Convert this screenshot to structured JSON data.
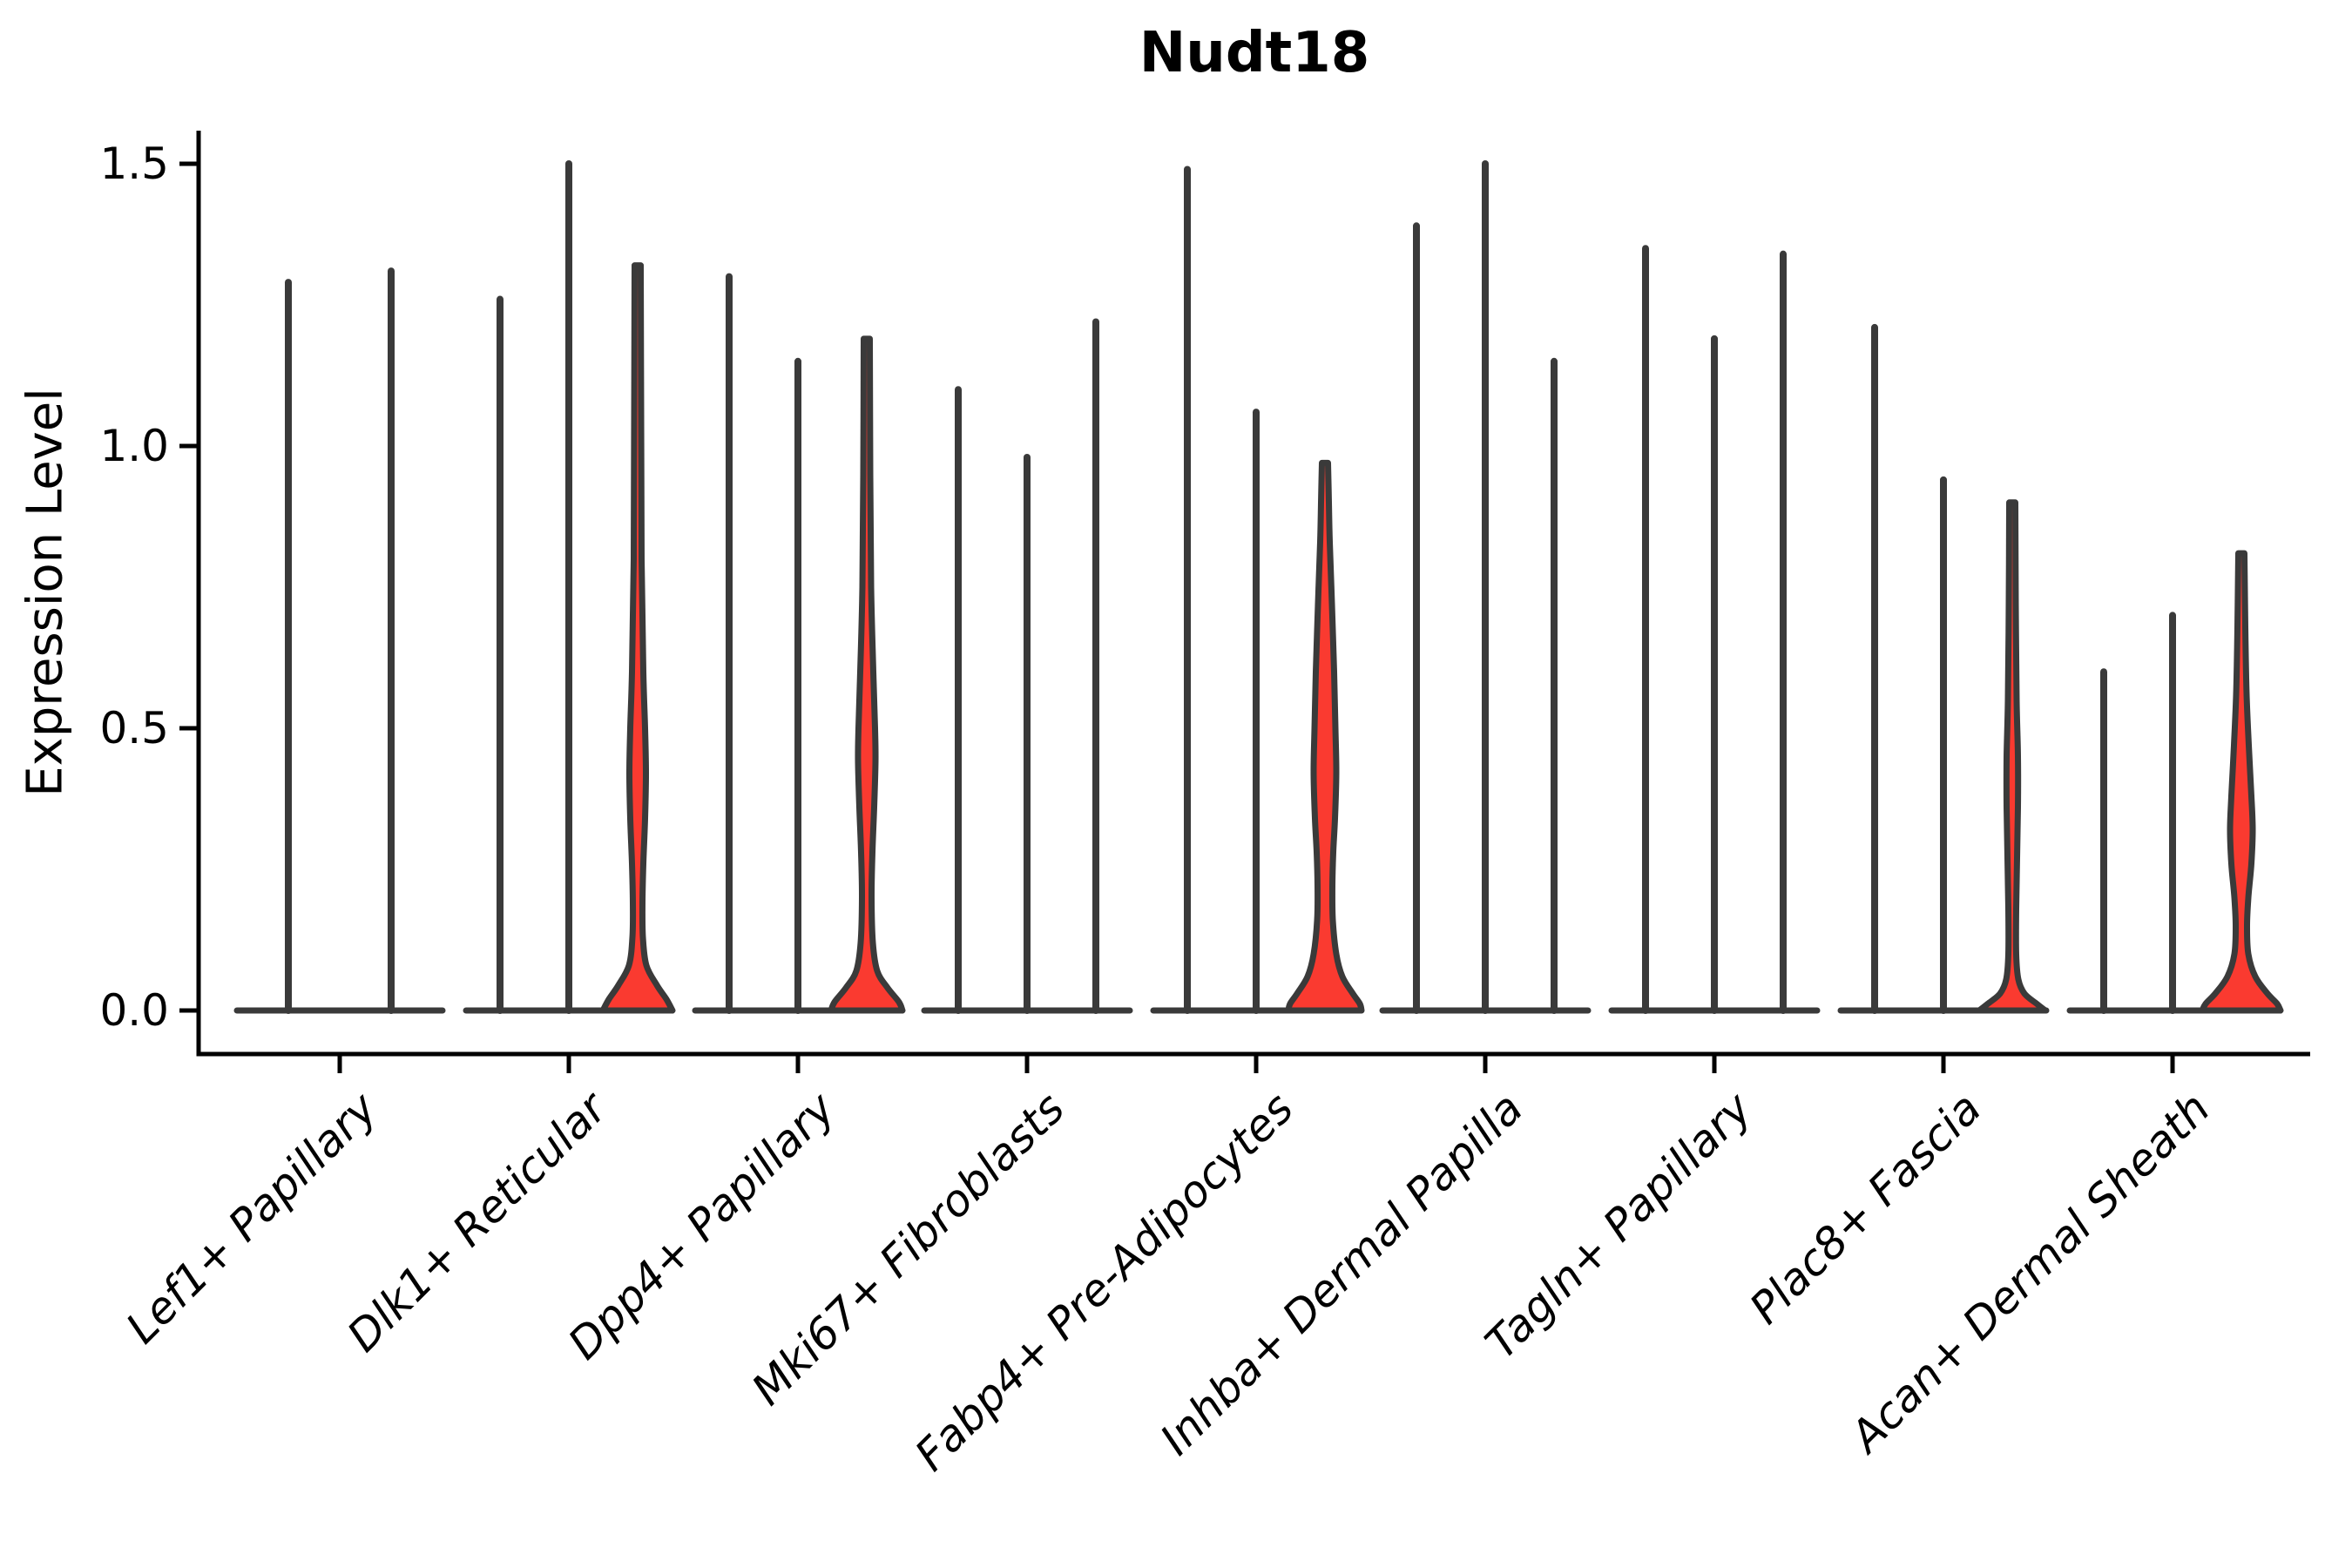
{
  "chart_data": {
    "type": "violin",
    "title": "Nudt18",
    "ylabel": "Expression Level",
    "xlabel": "",
    "grid": false,
    "legend": "none",
    "ylim": [
      -0.08,
      1.56
    ],
    "ytick_labels": [
      "0.0",
      "0.5",
      "1.0",
      "1.5"
    ],
    "ytick_values": [
      0.0,
      0.5,
      1.0,
      1.5
    ],
    "colors": {
      "violin_fill": "#fa3a30",
      "violin_edge": "#3a3a3a",
      "axis": "#000000",
      "background": "#ffffff"
    },
    "description": "Violin plot of Nudt18 expression; most violins collapse to thin spikes at 0 with tails up to the max expression value; red-filled violins show non-zero density bulges.",
    "categories": [
      {
        "label": "Lef1+ Papillary",
        "slots": 2,
        "violins": [
          {
            "slot": 0,
            "max": 1.29,
            "kind": "spike"
          },
          {
            "slot": 1,
            "max": 1.31,
            "kind": "spike"
          }
        ]
      },
      {
        "label": "Dlk1+ Reticular",
        "slots": 3,
        "violins": [
          {
            "slot": 0,
            "max": 1.26,
            "kind": "spike"
          },
          {
            "slot": 1,
            "max": 1.5,
            "kind": "spike"
          },
          {
            "slot": 2,
            "max": 1.32,
            "kind": "shaped",
            "profile": [
              [
                1.32,
                3.5
              ],
              [
                1.05,
                4
              ],
              [
                0.8,
                4.5
              ],
              [
                0.6,
                6.5
              ],
              [
                0.5,
                8.5
              ],
              [
                0.42,
                9.5
              ],
              [
                0.34,
                8.5
              ],
              [
                0.26,
                6.5
              ],
              [
                0.19,
                5.5
              ],
              [
                0.13,
                6
              ],
              [
                0.08,
                10
              ],
              [
                0.045,
                22
              ],
              [
                0.02,
                33
              ],
              [
                0,
                40
              ]
            ]
          }
        ]
      },
      {
        "label": "Dpp4+ Papillary",
        "slots": 3,
        "violins": [
          {
            "slot": 0,
            "max": 1.3,
            "kind": "spike"
          },
          {
            "slot": 1,
            "max": 1.15,
            "kind": "spike"
          },
          {
            "slot": 2,
            "max": 1.19,
            "kind": "shaped",
            "profile": [
              [
                1.19,
                3.5
              ],
              [
                0.95,
                4
              ],
              [
                0.75,
                5
              ],
              [
                0.6,
                7.5
              ],
              [
                0.5,
                9.5
              ],
              [
                0.44,
                10
              ],
              [
                0.36,
                8.5
              ],
              [
                0.28,
                6.5
              ],
              [
                0.2,
                5.5
              ],
              [
                0.12,
                7
              ],
              [
                0.07,
                12
              ],
              [
                0.04,
                24
              ],
              [
                0.015,
                37
              ],
              [
                0,
                41
              ]
            ]
          }
        ]
      },
      {
        "label": "Mki67+ Fibroblasts",
        "slots": 3,
        "violins": [
          {
            "slot": 0,
            "max": 1.1,
            "kind": "spike"
          },
          {
            "slot": 1,
            "max": 0.98,
            "kind": "spike"
          },
          {
            "slot": 2,
            "max": 1.22,
            "kind": "spike"
          }
        ]
      },
      {
        "label": "Fabp4+ Pre-Adipocytes",
        "slots": 3,
        "violins": [
          {
            "slot": 0,
            "max": 1.49,
            "kind": "spike"
          },
          {
            "slot": 1,
            "max": 1.06,
            "kind": "spike"
          },
          {
            "slot": 2,
            "max": 0.97,
            "kind": "shaped",
            "profile": [
              [
                0.97,
                3.5
              ],
              [
                0.9,
                4.5
              ],
              [
                0.83,
                5.5
              ],
              [
                0.72,
                8
              ],
              [
                0.6,
                10.5
              ],
              [
                0.5,
                12
              ],
              [
                0.42,
                13
              ],
              [
                0.34,
                11.5
              ],
              [
                0.28,
                9.5
              ],
              [
                0.22,
                8.5
              ],
              [
                0.16,
                9
              ],
              [
                0.1,
                13
              ],
              [
                0.06,
                20
              ],
              [
                0.03,
                32
              ],
              [
                0.012,
                40
              ],
              [
                0,
                42
              ]
            ]
          }
        ]
      },
      {
        "label": "Inhba+ Dermal Papilla",
        "slots": 3,
        "violins": [
          {
            "slot": 0,
            "max": 1.39,
            "kind": "spike"
          },
          {
            "slot": 1,
            "max": 1.5,
            "kind": "spike"
          },
          {
            "slot": 2,
            "max": 1.15,
            "kind": "spike"
          }
        ]
      },
      {
        "label": "Tagln+ Papillary",
        "slots": 3,
        "violins": [
          {
            "slot": 0,
            "max": 1.35,
            "kind": "spike"
          },
          {
            "slot": 1,
            "max": 1.19,
            "kind": "spike"
          },
          {
            "slot": 2,
            "max": 1.34,
            "kind": "spike"
          }
        ]
      },
      {
        "label": "Plac8+ Fascia",
        "slots": 3,
        "violins": [
          {
            "slot": 0,
            "max": 1.21,
            "kind": "spike"
          },
          {
            "slot": 1,
            "max": 0.94,
            "kind": "spike"
          },
          {
            "slot": 2,
            "max": 0.9,
            "kind": "shaped",
            "profile": [
              [
                0.9,
                3.5
              ],
              [
                0.72,
                4
              ],
              [
                0.55,
                5
              ],
              [
                0.45,
                6.5
              ],
              [
                0.36,
                6.5
              ],
              [
                0.27,
                5.5
              ],
              [
                0.18,
                4.5
              ],
              [
                0.1,
                4.5
              ],
              [
                0.055,
                7
              ],
              [
                0.03,
                14
              ],
              [
                0.012,
                28
              ],
              [
                0,
                38
              ]
            ]
          }
        ]
      },
      {
        "label": "Acan+ Dermal Sheath",
        "slots": 3,
        "violins": [
          {
            "slot": 0,
            "max": 0.6,
            "kind": "spike"
          },
          {
            "slot": 1,
            "max": 0.7,
            "kind": "spike"
          },
          {
            "slot": 2,
            "max": 0.81,
            "kind": "shaped",
            "profile": [
              [
                0.81,
                3.5
              ],
              [
                0.68,
                4.5
              ],
              [
                0.56,
                6
              ],
              [
                0.47,
                8.5
              ],
              [
                0.38,
                11.5
              ],
              [
                0.32,
                13
              ],
              [
                0.26,
                11.5
              ],
              [
                0.2,
                8
              ],
              [
                0.15,
                6.5
              ],
              [
                0.1,
                8
              ],
              [
                0.06,
                16
              ],
              [
                0.03,
                30
              ],
              [
                0.012,
                41
              ],
              [
                0,
                45
              ]
            ]
          }
        ]
      }
    ]
  }
}
